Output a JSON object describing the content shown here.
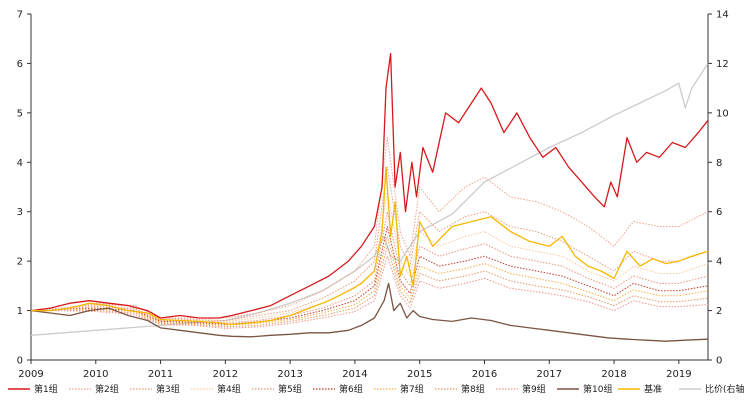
{
  "chart_data": {
    "type": "line",
    "title": "",
    "xlabel": "",
    "ylabel": "",
    "x_ticks": [
      "2009",
      "2010",
      "2011",
      "2012",
      "2013",
      "2014",
      "2015",
      "2016",
      "2017",
      "2018",
      "2019"
    ],
    "x_range": [
      2009.0,
      2019.45
    ],
    "y_left": {
      "range": [
        0,
        7
      ],
      "ticks": [
        "0",
        "1",
        "2",
        "3",
        "4",
        "5",
        "6",
        "7"
      ]
    },
    "y_right": {
      "range": [
        0,
        14
      ],
      "ticks": [
        "0",
        "2",
        "4",
        "6",
        "8",
        "10",
        "12",
        "14"
      ]
    },
    "legend_position": "bottom",
    "series": [
      {
        "name": "第1组",
        "axis": "left",
        "color": "#d7191c",
        "style": "solid",
        "x": [
          2009.0,
          2009.3,
          2009.6,
          2009.9,
          2010.2,
          2010.5,
          2010.8,
          2011.0,
          2011.3,
          2011.6,
          2011.9,
          2012.1,
          2012.4,
          2012.7,
          2013.0,
          2013.3,
          2013.6,
          2013.9,
          2014.1,
          2014.3,
          2014.42,
          2014.48,
          2014.55,
          2014.62,
          2014.7,
          2014.78,
          2014.88,
          2014.95,
          2015.05,
          2015.2,
          2015.4,
          2015.6,
          2015.8,
          2015.95,
          2016.1,
          2016.3,
          2016.5,
          2016.7,
          2016.9,
          2017.1,
          2017.3,
          2017.5,
          2017.7,
          2017.85,
          2017.95,
          2018.05,
          2018.2,
          2018.35,
          2018.5,
          2018.7,
          2018.9,
          2019.1,
          2019.3,
          2019.45
        ],
        "y": [
          1.0,
          1.05,
          1.15,
          1.2,
          1.15,
          1.1,
          1.0,
          0.85,
          0.9,
          0.85,
          0.85,
          0.9,
          1.0,
          1.1,
          1.3,
          1.5,
          1.7,
          2.0,
          2.3,
          2.7,
          3.5,
          5.5,
          6.2,
          3.5,
          4.2,
          3.0,
          4.0,
          3.3,
          4.3,
          3.8,
          5.0,
          4.8,
          5.2,
          5.5,
          5.2,
          4.6,
          5.0,
          4.5,
          4.1,
          4.3,
          3.9,
          3.6,
          3.3,
          3.1,
          3.6,
          3.3,
          4.5,
          4.0,
          4.2,
          4.1,
          4.4,
          4.3,
          4.6,
          4.85
        ]
      },
      {
        "name": "第2组",
        "axis": "left",
        "color": "#f0a18f",
        "style": "dotted",
        "x": [
          2009.0,
          2009.5,
          2010.0,
          2010.6,
          2011.0,
          2011.5,
          2012.0,
          2012.5,
          2013.0,
          2013.5,
          2014.0,
          2014.3,
          2014.5,
          2014.7,
          2014.85,
          2015.0,
          2015.3,
          2015.7,
          2016.0,
          2016.4,
          2016.8,
          2017.2,
          2017.6,
          2018.0,
          2018.3,
          2018.7,
          2019.0,
          2019.45
        ],
        "y": [
          1.0,
          1.05,
          1.15,
          1.1,
          0.85,
          0.85,
          0.85,
          0.95,
          1.1,
          1.4,
          1.8,
          2.3,
          4.5,
          2.6,
          2.1,
          3.5,
          3.0,
          3.5,
          3.7,
          3.3,
          3.2,
          3.0,
          2.7,
          2.3,
          2.8,
          2.7,
          2.7,
          3.0
        ]
      },
      {
        "name": "第3组",
        "axis": "left",
        "color": "#eb9b7e",
        "style": "dotted",
        "x": [
          2009.0,
          2009.5,
          2010.0,
          2010.6,
          2011.0,
          2011.5,
          2012.0,
          2012.5,
          2013.0,
          2013.5,
          2014.0,
          2014.3,
          2014.5,
          2014.7,
          2014.85,
          2015.0,
          2015.3,
          2015.7,
          2016.0,
          2016.4,
          2016.8,
          2017.2,
          2017.6,
          2018.0,
          2018.3,
          2018.7,
          2019.0,
          2019.45
        ],
        "y": [
          1.0,
          1.05,
          1.12,
          1.1,
          0.85,
          0.82,
          0.8,
          0.9,
          1.0,
          1.25,
          1.6,
          2.0,
          3.9,
          2.3,
          1.9,
          3.0,
          2.6,
          2.9,
          3.0,
          2.7,
          2.6,
          2.4,
          2.1,
          1.8,
          2.2,
          2.0,
          2.0,
          2.2
        ]
      },
      {
        "name": "第4组",
        "axis": "left",
        "color": "#f6c9a0",
        "style": "dotted",
        "x": [
          2009.0,
          2009.5,
          2010.0,
          2010.6,
          2011.0,
          2011.5,
          2012.0,
          2012.5,
          2013.0,
          2013.5,
          2014.0,
          2014.3,
          2014.5,
          2014.7,
          2014.85,
          2015.0,
          2015.3,
          2015.7,
          2016.0,
          2016.4,
          2016.8,
          2017.2,
          2017.6,
          2018.0,
          2018.3,
          2018.7,
          2019.0,
          2019.45
        ],
        "y": [
          1.0,
          1.03,
          1.1,
          1.05,
          0.82,
          0.8,
          0.78,
          0.85,
          0.95,
          1.15,
          1.45,
          1.8,
          3.4,
          2.0,
          1.7,
          2.6,
          2.3,
          2.5,
          2.6,
          2.3,
          2.2,
          2.1,
          1.8,
          1.6,
          1.9,
          1.75,
          1.75,
          1.95
        ]
      },
      {
        "name": "第5组",
        "axis": "left",
        "color": "#e9967a",
        "style": "dotted",
        "x": [
          2009.0,
          2009.5,
          2010.0,
          2010.6,
          2011.0,
          2011.5,
          2012.0,
          2012.5,
          2013.0,
          2013.5,
          2014.0,
          2014.3,
          2014.5,
          2014.7,
          2014.85,
          2015.0,
          2015.3,
          2015.7,
          2016.0,
          2016.4,
          2016.8,
          2017.2,
          2017.6,
          2018.0,
          2018.3,
          2018.7,
          2019.0,
          2019.45
        ],
        "y": [
          1.0,
          1.03,
          1.08,
          1.03,
          0.8,
          0.78,
          0.75,
          0.8,
          0.9,
          1.05,
          1.3,
          1.6,
          3.0,
          1.8,
          1.5,
          2.3,
          2.1,
          2.25,
          2.35,
          2.1,
          2.0,
          1.9,
          1.65,
          1.45,
          1.7,
          1.55,
          1.55,
          1.7
        ]
      },
      {
        "name": "第6组",
        "axis": "left",
        "color": "#c0392b",
        "style": "dotted",
        "x": [
          2009.0,
          2009.5,
          2010.0,
          2010.6,
          2011.0,
          2011.5,
          2012.0,
          2012.5,
          2013.0,
          2013.5,
          2014.0,
          2014.3,
          2014.5,
          2014.7,
          2014.85,
          2015.0,
          2015.3,
          2015.7,
          2016.0,
          2016.4,
          2016.8,
          2017.2,
          2017.6,
          2018.0,
          2018.3,
          2018.7,
          2019.0,
          2019.45
        ],
        "y": [
          1.0,
          1.02,
          1.05,
          1.0,
          0.78,
          0.76,
          0.72,
          0.77,
          0.85,
          1.0,
          1.2,
          1.5,
          2.7,
          1.6,
          1.35,
          2.1,
          1.9,
          2.0,
          2.1,
          1.9,
          1.8,
          1.7,
          1.5,
          1.3,
          1.55,
          1.4,
          1.4,
          1.5
        ]
      },
      {
        "name": "第7组",
        "axis": "left",
        "color": "#f5b041",
        "style": "dotted",
        "x": [
          2009.0,
          2009.5,
          2010.0,
          2010.6,
          2011.0,
          2011.5,
          2012.0,
          2012.5,
          2013.0,
          2013.5,
          2014.0,
          2014.3,
          2014.5,
          2014.7,
          2014.85,
          2015.0,
          2015.3,
          2015.7,
          2016.0,
          2016.4,
          2016.8,
          2017.2,
          2017.6,
          2018.0,
          2018.3,
          2018.7,
          2019.0,
          2019.45
        ],
        "y": [
          1.0,
          1.02,
          1.03,
          0.98,
          0.76,
          0.74,
          0.7,
          0.74,
          0.82,
          0.95,
          1.12,
          1.4,
          2.5,
          1.5,
          1.25,
          1.9,
          1.75,
          1.85,
          1.95,
          1.75,
          1.65,
          1.55,
          1.38,
          1.2,
          1.42,
          1.3,
          1.3,
          1.4
        ]
      },
      {
        "name": "第8组",
        "axis": "left",
        "color": "#e59866",
        "style": "dotted",
        "x": [
          2009.0,
          2009.5,
          2010.0,
          2010.6,
          2011.0,
          2011.5,
          2012.0,
          2012.5,
          2013.0,
          2013.5,
          2014.0,
          2014.3,
          2014.5,
          2014.7,
          2014.85,
          2015.0,
          2015.3,
          2015.7,
          2016.0,
          2016.4,
          2016.8,
          2017.2,
          2017.6,
          2018.0,
          2018.3,
          2018.7,
          2019.0,
          2019.45
        ],
        "y": [
          1.0,
          1.01,
          1.0,
          0.95,
          0.74,
          0.72,
          0.67,
          0.7,
          0.78,
          0.9,
          1.05,
          1.3,
          2.3,
          1.4,
          1.15,
          1.75,
          1.6,
          1.7,
          1.8,
          1.6,
          1.5,
          1.42,
          1.28,
          1.1,
          1.3,
          1.18,
          1.18,
          1.25
        ]
      },
      {
        "name": "第9组",
        "axis": "left",
        "color": "#f1948a",
        "style": "dotted",
        "x": [
          2009.0,
          2009.5,
          2010.0,
          2010.6,
          2011.0,
          2011.5,
          2012.0,
          2012.5,
          2013.0,
          2013.5,
          2014.0,
          2014.3,
          2014.5,
          2014.7,
          2014.85,
          2015.0,
          2015.3,
          2015.7,
          2016.0,
          2016.4,
          2016.8,
          2017.2,
          2017.6,
          2018.0,
          2018.3,
          2018.7,
          2019.0,
          2019.45
        ],
        "y": [
          1.0,
          1.0,
          0.98,
          0.92,
          0.72,
          0.7,
          0.64,
          0.67,
          0.74,
          0.85,
          0.98,
          1.2,
          2.1,
          1.3,
          1.05,
          1.6,
          1.45,
          1.55,
          1.65,
          1.45,
          1.38,
          1.3,
          1.18,
          1.0,
          1.2,
          1.08,
          1.08,
          1.12
        ]
      },
      {
        "name": "第10组",
        "axis": "left",
        "color": "#7b5544",
        "style": "solid",
        "x": [
          2009.0,
          2009.3,
          2009.6,
          2009.9,
          2010.2,
          2010.5,
          2010.8,
          2011.0,
          2011.3,
          2011.6,
          2011.9,
          2012.1,
          2012.4,
          2012.7,
          2013.0,
          2013.3,
          2013.6,
          2013.9,
          2014.1,
          2014.3,
          2014.45,
          2014.52,
          2014.6,
          2014.7,
          2014.8,
          2014.9,
          2015.0,
          2015.2,
          2015.5,
          2015.8,
          2016.1,
          2016.4,
          2016.7,
          2017.0,
          2017.3,
          2017.6,
          2017.9,
          2018.2,
          2018.5,
          2018.8,
          2019.1,
          2019.45
        ],
        "y": [
          1.0,
          0.95,
          0.9,
          1.0,
          1.05,
          0.9,
          0.8,
          0.65,
          0.6,
          0.55,
          0.5,
          0.48,
          0.47,
          0.5,
          0.52,
          0.55,
          0.55,
          0.6,
          0.7,
          0.85,
          1.2,
          1.55,
          1.0,
          1.15,
          0.85,
          1.0,
          0.88,
          0.82,
          0.78,
          0.85,
          0.8,
          0.7,
          0.65,
          0.6,
          0.55,
          0.5,
          0.45,
          0.42,
          0.4,
          0.38,
          0.4,
          0.42
        ]
      },
      {
        "name": "基准",
        "axis": "left",
        "color": "#f5b800",
        "style": "solid",
        "x": [
          2009.0,
          2009.3,
          2009.6,
          2009.9,
          2010.2,
          2010.5,
          2010.8,
          2011.0,
          2011.3,
          2011.6,
          2011.9,
          2012.1,
          2012.4,
          2012.7,
          2013.0,
          2013.3,
          2013.6,
          2013.9,
          2014.1,
          2014.3,
          2014.42,
          2014.48,
          2014.55,
          2014.62,
          2014.7,
          2014.8,
          2014.9,
          2015.0,
          2015.2,
          2015.5,
          2015.8,
          2016.1,
          2016.4,
          2016.7,
          2017.0,
          2017.2,
          2017.4,
          2017.6,
          2017.8,
          2018.0,
          2018.2,
          2018.4,
          2018.6,
          2018.8,
          2019.0,
          2019.2,
          2019.45
        ],
        "y": [
          1.0,
          1.0,
          1.05,
          1.15,
          1.1,
          1.0,
          0.95,
          0.82,
          0.8,
          0.78,
          0.75,
          0.72,
          0.75,
          0.8,
          0.9,
          1.05,
          1.2,
          1.4,
          1.55,
          1.8,
          2.6,
          3.9,
          2.5,
          3.2,
          1.7,
          2.1,
          1.5,
          2.8,
          2.3,
          2.7,
          2.8,
          2.9,
          2.6,
          2.4,
          2.3,
          2.5,
          2.1,
          1.9,
          1.8,
          1.65,
          2.2,
          1.9,
          2.05,
          1.95,
          2.0,
          2.1,
          2.2
        ]
      },
      {
        "name": "比价(右轴)",
        "axis": "right",
        "color": "#cccccc",
        "style": "solid",
        "x": [
          2009.0,
          2009.5,
          2010.0,
          2010.5,
          2011.0,
          2011.5,
          2012.0,
          2012.5,
          2013.0,
          2013.5,
          2014.0,
          2014.3,
          2014.45,
          2014.55,
          2014.7,
          2015.0,
          2015.5,
          2016.0,
          2016.5,
          2017.0,
          2017.5,
          2018.0,
          2018.4,
          2018.8,
          2019.0,
          2019.1,
          2019.2,
          2019.45
        ],
        "y": [
          1.0,
          1.1,
          1.2,
          1.3,
          1.4,
          1.5,
          1.6,
          1.9,
          2.3,
          2.8,
          3.6,
          4.2,
          5.0,
          4.2,
          4.0,
          5.2,
          5.9,
          7.2,
          7.9,
          8.6,
          9.2,
          9.9,
          10.4,
          10.9,
          11.2,
          10.2,
          11.0,
          12.0
        ]
      }
    ]
  }
}
